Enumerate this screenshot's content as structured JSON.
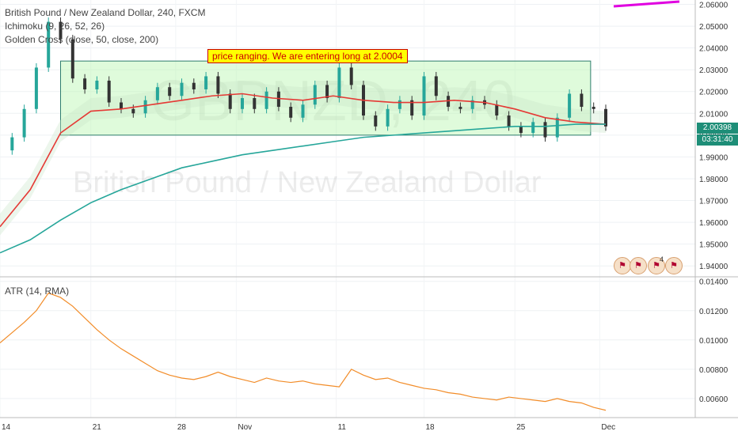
{
  "legend": {
    "symbol": "British Pound / New Zealand Dollar, 240, FXCM",
    "ichimoku": "Ichimoku (9, 26, 52, 26)",
    "golden_cross": "Golden Cross (close, 50, close, 200)",
    "atr": "ATR (14, RMA)"
  },
  "watermark": {
    "ticker": "GBPNZD, 240",
    "name": "British Pound / New Zealand Dollar"
  },
  "annotation": "price ranging. We are entering long at 2.0004",
  "price_label": "2.00398",
  "countdown_label": "03:31:40",
  "flag_count": "4",
  "colors": {
    "candle_up": "#26a69a",
    "candle_down": "#333333",
    "ma50": "#e53935",
    "ma200": "#26a69a",
    "cloud": "#c8e6c9",
    "range_box": "#b9f6b0",
    "atr": "#f28c28",
    "pink_line": "#e000e0"
  },
  "chart_data": [
    {
      "type": "line",
      "title": "British Pound / New Zealand Dollar, 240, FXCM",
      "x_ticks": [
        "14",
        "21",
        "28",
        "Nov",
        "11",
        "18",
        "25",
        "Dec"
      ],
      "y_ticks": [
        "2.06000",
        "2.05000",
        "2.04000",
        "2.03000",
        "2.02000",
        "2.01000",
        "2.00000",
        "1.99000",
        "1.98000",
        "1.97000",
        "1.96000",
        "1.95000",
        "1.94000"
      ],
      "ylim": [
        1.935,
        2.062
      ],
      "series": [
        {
          "name": "Price",
          "x": [
            0,
            4,
            8,
            12,
            16,
            20,
            24,
            28,
            32,
            36,
            40,
            44,
            48,
            52,
            56,
            60,
            64,
            68,
            72,
            76,
            80,
            84,
            88,
            92,
            96,
            100,
            104,
            108,
            112,
            116,
            120,
            124,
            128,
            132,
            136,
            140,
            144,
            148,
            152,
            156,
            160,
            164,
            168,
            172,
            176,
            180,
            184,
            188,
            192,
            196,
            200
          ],
          "values": [
            1.993,
            1.999,
            2.012,
            2.031,
            2.052,
            2.044,
            2.026,
            2.021,
            2.025,
            2.015,
            2.012,
            2.01,
            2.016,
            2.022,
            2.018,
            2.024,
            2.021,
            2.027,
            2.019,
            2.012,
            2.017,
            2.012,
            2.02,
            2.013,
            2.008,
            2.014,
            2.023,
            2.017,
            2.031,
            2.023,
            2.009,
            2.004,
            2.012,
            2.016,
            2.009,
            2.027,
            2.018,
            2.013,
            2.012,
            2.016,
            2.014,
            2.009,
            2.004,
            2.001,
            2.006,
            1.999,
            2.008,
            2.019,
            2.013,
            2.012,
            2.004
          ]
        },
        {
          "name": "MA 50",
          "x": [
            0,
            10,
            20,
            30,
            40,
            50,
            60,
            70,
            80,
            90,
            100,
            110,
            120,
            130,
            140,
            150,
            160,
            170,
            180,
            190,
            200
          ],
          "values": [
            1.958,
            1.975,
            2.001,
            2.011,
            2.012,
            2.014,
            2.016,
            2.018,
            2.019,
            2.017,
            2.016,
            2.018,
            2.016,
            2.015,
            2.015,
            2.016,
            2.015,
            2.012,
            2.008,
            2.006,
            2.005
          ]
        },
        {
          "name": "MA 200",
          "x": [
            0,
            10,
            20,
            30,
            40,
            50,
            60,
            70,
            80,
            90,
            100,
            110,
            120,
            130,
            140,
            150,
            160,
            170,
            180,
            190,
            200
          ],
          "values": [
            1.946,
            1.952,
            1.961,
            1.969,
            1.975,
            1.98,
            1.985,
            1.988,
            1.991,
            1.993,
            1.995,
            1.997,
            1.999,
            2.0,
            2.001,
            2.002,
            2.003,
            2.004,
            2.004,
            2.005,
            2.005
          ]
        }
      ],
      "range_box": {
        "x_start": 20,
        "x_end": 195,
        "y_low": 2.0,
        "y_high": 2.034
      }
    },
    {
      "type": "line",
      "title": "ATR (14, RMA)",
      "x_ticks": [
        "14",
        "21",
        "28",
        "Nov",
        "11",
        "18",
        "25",
        "Dec"
      ],
      "y_ticks": [
        "0.01400",
        "0.01200",
        "0.01000",
        "0.00800",
        "0.00600"
      ],
      "ylim": [
        0.0047,
        0.0142
      ],
      "series": [
        {
          "name": "ATR",
          "x": [
            0,
            4,
            8,
            12,
            16,
            20,
            24,
            28,
            32,
            36,
            40,
            44,
            48,
            52,
            56,
            60,
            64,
            68,
            72,
            76,
            80,
            84,
            88,
            92,
            96,
            100,
            104,
            108,
            112,
            116,
            120,
            124,
            128,
            132,
            136,
            140,
            144,
            148,
            152,
            156,
            160,
            164,
            168,
            172,
            176,
            180,
            184,
            188,
            192,
            196,
            200
          ],
          "values": [
            0.0098,
            0.0105,
            0.0112,
            0.012,
            0.0132,
            0.0129,
            0.0123,
            0.0115,
            0.0107,
            0.01,
            0.0094,
            0.0089,
            0.0084,
            0.0079,
            0.0076,
            0.0074,
            0.0073,
            0.0075,
            0.0078,
            0.0075,
            0.0073,
            0.0071,
            0.0074,
            0.0072,
            0.0071,
            0.0072,
            0.007,
            0.0069,
            0.0068,
            0.008,
            0.0076,
            0.0073,
            0.0074,
            0.0071,
            0.0069,
            0.0067,
            0.0066,
            0.0064,
            0.0063,
            0.0061,
            0.006,
            0.0059,
            0.0061,
            0.006,
            0.0059,
            0.0058,
            0.006,
            0.0058,
            0.0057,
            0.0054,
            0.0052
          ]
        }
      ]
    }
  ]
}
